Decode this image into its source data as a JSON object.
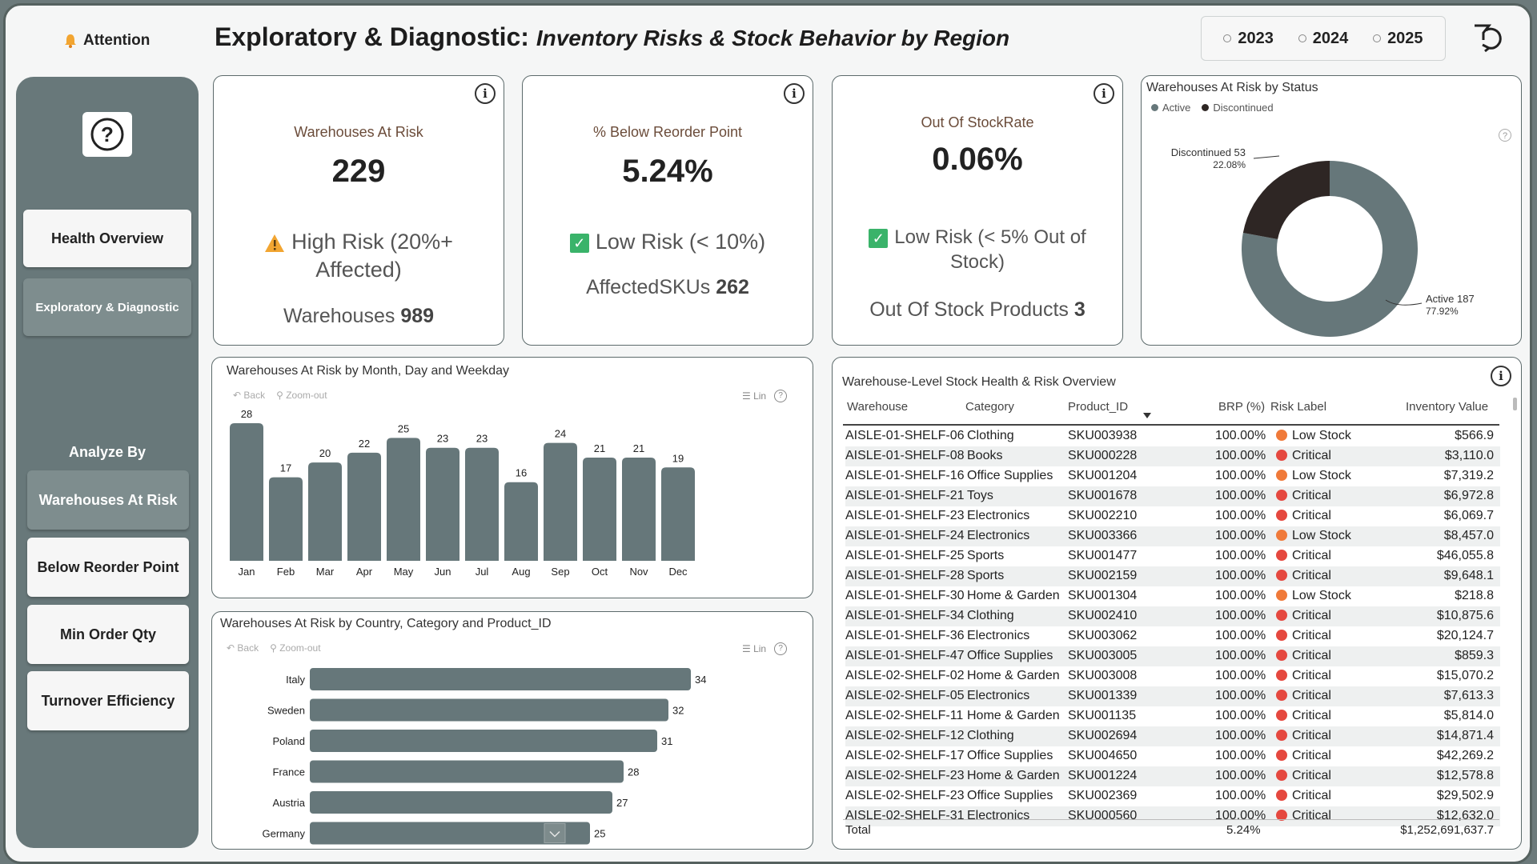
{
  "header": {
    "attention_label": "Attention",
    "title_main": "Exploratory & Diagnostic:",
    "title_sub": "Inventory Risks & Stock Behavior by Region",
    "years": [
      "2023",
      "2024",
      "2025"
    ]
  },
  "sidebar": {
    "help_symbol": "?",
    "nav": [
      "Health Overview",
      "Exploratory & Diagnostic"
    ],
    "analyze_title": "Analyze By",
    "analyze": [
      "Warehouses At Risk",
      "Below Reorder Point",
      "Min Order Qty",
      "Turnover Efficiency"
    ]
  },
  "kpis": [
    {
      "label": "Warehouses At Risk",
      "value": "229",
      "status": "High Risk (20%+ Affected)",
      "foot_label": "Warehouses",
      "foot_value": "989"
    },
    {
      "label": "% Below Reorder Point",
      "value": "5.24%",
      "status": "Low Risk (< 10%)",
      "foot_label": "AffectedSKUs",
      "foot_value": "262"
    },
    {
      "label": "Out Of StockRate",
      "value": "0.06%",
      "status": "Low Risk (< 5% Out of Stock)",
      "foot_label": "Out Of Stock Products",
      "foot_value": "3"
    }
  ],
  "donut": {
    "title": "Warehouses At Risk by Status",
    "legend": [
      "Active",
      "Discontinued"
    ],
    "labels": {
      "disc_line1": "Discontinued 53",
      "disc_line2": "22.08%",
      "act_line1": "Active 187",
      "act_line2": "77.92%"
    }
  },
  "toolbar": {
    "back": "Back",
    "zoom": "Zoom-out",
    "lin": "Lin"
  },
  "month_chart_title": "Warehouses At Risk by Month, Day and Weekday",
  "country_chart_title": "Warehouses At Risk by Country, Category and Product_ID",
  "table": {
    "title": "Warehouse-Level Stock Health & Risk Overview",
    "columns": [
      "Warehouse",
      "Category",
      "Product_ID",
      "BRP (%)",
      "Risk Label",
      "Inventory Value"
    ],
    "rows": [
      [
        "AISLE-01-SHELF-06",
        "Clothing",
        "SKU003938",
        "100.00%",
        "Low Stock",
        "$566.9"
      ],
      [
        "AISLE-01-SHELF-08",
        "Books",
        "SKU000228",
        "100.00%",
        "Critical",
        "$3,110.0"
      ],
      [
        "AISLE-01-SHELF-16",
        "Office Supplies",
        "SKU001204",
        "100.00%",
        "Low Stock",
        "$7,319.2"
      ],
      [
        "AISLE-01-SHELF-21",
        "Toys",
        "SKU001678",
        "100.00%",
        "Critical",
        "$6,972.8"
      ],
      [
        "AISLE-01-SHELF-23",
        "Electronics",
        "SKU002210",
        "100.00%",
        "Critical",
        "$6,069.7"
      ],
      [
        "AISLE-01-SHELF-24",
        "Electronics",
        "SKU003366",
        "100.00%",
        "Low Stock",
        "$8,457.0"
      ],
      [
        "AISLE-01-SHELF-25",
        "Sports",
        "SKU001477",
        "100.00%",
        "Critical",
        "$46,055.8"
      ],
      [
        "AISLE-01-SHELF-28",
        "Sports",
        "SKU002159",
        "100.00%",
        "Critical",
        "$9,648.1"
      ],
      [
        "AISLE-01-SHELF-30",
        "Home & Garden",
        "SKU001304",
        "100.00%",
        "Low Stock",
        "$218.8"
      ],
      [
        "AISLE-01-SHELF-34",
        "Clothing",
        "SKU002410",
        "100.00%",
        "Critical",
        "$10,875.6"
      ],
      [
        "AISLE-01-SHELF-36",
        "Electronics",
        "SKU003062",
        "100.00%",
        "Critical",
        "$20,124.7"
      ],
      [
        "AISLE-01-SHELF-47",
        "Office Supplies",
        "SKU003005",
        "100.00%",
        "Critical",
        "$859.3"
      ],
      [
        "AISLE-02-SHELF-02",
        "Home & Garden",
        "SKU003008",
        "100.00%",
        "Critical",
        "$15,070.2"
      ],
      [
        "AISLE-02-SHELF-05",
        "Electronics",
        "SKU001339",
        "100.00%",
        "Critical",
        "$7,613.3"
      ],
      [
        "AISLE-02-SHELF-11",
        "Home & Garden",
        "SKU001135",
        "100.00%",
        "Critical",
        "$5,814.0"
      ],
      [
        "AISLE-02-SHELF-12",
        "Clothing",
        "SKU002694",
        "100.00%",
        "Critical",
        "$14,871.4"
      ],
      [
        "AISLE-02-SHELF-17",
        "Office Supplies",
        "SKU004650",
        "100.00%",
        "Critical",
        "$42,269.2"
      ],
      [
        "AISLE-02-SHELF-23",
        "Home & Garden",
        "SKU001224",
        "100.00%",
        "Critical",
        "$12,578.8"
      ],
      [
        "AISLE-02-SHELF-23",
        "Office Supplies",
        "SKU002369",
        "100.00%",
        "Critical",
        "$29,502.9"
      ],
      [
        "AISLE-02-SHELF-31",
        "Electronics",
        "SKU000560",
        "100.00%",
        "Critical",
        "$12,632.0"
      ]
    ],
    "total": {
      "label": "Total",
      "brp": "5.24%",
      "value": "$1,252,691,637.7"
    }
  },
  "colors": {
    "bar": "#66777a",
    "active": "#66777a",
    "discontinued": "#2e2624",
    "critical": "#e5483f",
    "low_stock": "#f07a3a"
  },
  "chart_data": [
    {
      "type": "bar",
      "title": "Warehouses At Risk by Month, Day and Weekday",
      "categories": [
        "Jan",
        "Feb",
        "Mar",
        "Apr",
        "May",
        "Jun",
        "Jul",
        "Aug",
        "Sep",
        "Oct",
        "Nov",
        "Dec"
      ],
      "values": [
        28,
        17,
        20,
        22,
        25,
        23,
        23,
        16,
        24,
        21,
        21,
        19
      ],
      "ylim": [
        0,
        28
      ]
    },
    {
      "type": "bar",
      "orientation": "horizontal",
      "title": "Warehouses At Risk by Country, Category and Product_ID",
      "categories": [
        "Italy",
        "Sweden",
        "Poland",
        "France",
        "Austria",
        "Germany"
      ],
      "values": [
        34,
        32,
        31,
        28,
        27,
        25
      ],
      "xlim": [
        0,
        34
      ]
    },
    {
      "type": "pie",
      "title": "Warehouses At Risk by Status",
      "categories": [
        "Active",
        "Discontinued"
      ],
      "values": [
        187,
        53
      ],
      "percentages": [
        77.92,
        22.08
      ]
    }
  ]
}
